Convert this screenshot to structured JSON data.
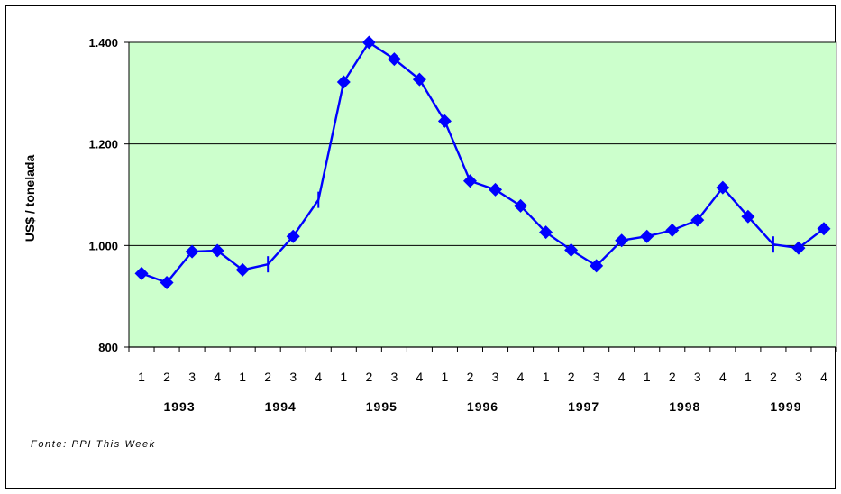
{
  "source_note": "Fonte: PPI This Week",
  "colors": {
    "plot_bg": "#ccffcc",
    "series": "#0000ff",
    "grid": "#000000"
  },
  "chart_data": {
    "type": "line",
    "title": "",
    "ylabel": "US$ / tonelada",
    "xlabel": "",
    "ylim": [
      800,
      1400
    ],
    "y_ticks": [
      "800",
      "1.000",
      "1.200",
      "1.400"
    ],
    "y_tick_values": [
      800,
      1000,
      1200,
      1400
    ],
    "grid": true,
    "quarters": [
      "1",
      "2",
      "3",
      "4",
      "1",
      "2",
      "3",
      "4",
      "1",
      "2",
      "3",
      "4",
      "1",
      "2",
      "3",
      "4",
      "1",
      "2",
      "3",
      "4",
      "1",
      "2",
      "3",
      "4",
      "1",
      "2",
      "3",
      "4"
    ],
    "years": [
      "1993",
      "1994",
      "1995",
      "1996",
      "1997",
      "1998",
      "1999"
    ],
    "series": [
      {
        "values": [
          945,
          927,
          988,
          990,
          952,
          963,
          1018,
          1090,
          1322,
          1400,
          1367,
          1327,
          1245,
          1127,
          1110,
          1078,
          1026,
          991,
          960,
          1010,
          1018,
          1030,
          1050,
          1114,
          1057,
          1002,
          995,
          1033
        ],
        "markers": [
          true,
          true,
          true,
          true,
          true,
          false,
          true,
          false,
          true,
          true,
          true,
          true,
          true,
          true,
          true,
          true,
          true,
          true,
          true,
          true,
          true,
          true,
          true,
          true,
          true,
          false,
          true,
          true
        ]
      }
    ]
  }
}
